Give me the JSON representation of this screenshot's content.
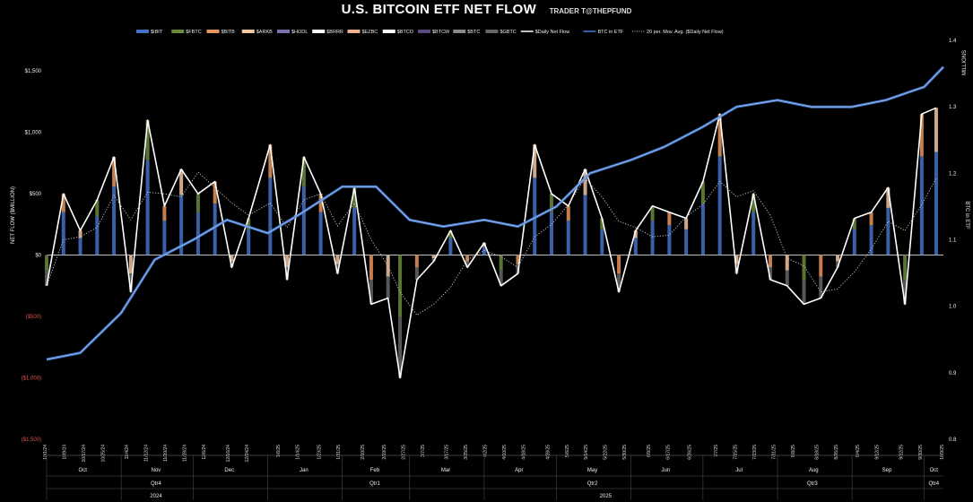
{
  "header": {
    "title": "U.S. BITCOIN ETF NET FLOW",
    "subtitle": "TRADER T@THEPFUND"
  },
  "chart_data": {
    "type": "bar",
    "title": "U.S. BITCOIN ETF NET FLOW",
    "subtitle": "TRADER T@THEPFUND",
    "ylabel_left": "NET FLOW ($MILLION)",
    "ylabel_right": "BTC in ETF",
    "ylabel_right_units": "MILLIONS",
    "left_axis": {
      "ylim": [
        -1500,
        1750
      ],
      "ticks": [
        {
          "value": 1500,
          "label": "$1,500"
        },
        {
          "value": 1000,
          "label": "$1,000"
        },
        {
          "value": 500,
          "label": "$500"
        },
        {
          "value": 0,
          "label": "$0"
        },
        {
          "value": -500,
          "label": "($500)"
        },
        {
          "value": -1000,
          "label": "($1,000)"
        },
        {
          "value": -1500,
          "label": "($1,500)"
        }
      ]
    },
    "right_axis": {
      "ylim": [
        0.8,
        1.4
      ],
      "ticks": [
        {
          "value": 1.4,
          "label": "1.4"
        },
        {
          "value": 1.3,
          "label": "1.3"
        },
        {
          "value": 1.2,
          "label": "1.2"
        },
        {
          "value": 1.1,
          "label": "1.1"
        },
        {
          "value": 1.0,
          "label": "1.0"
        },
        {
          "value": 0.9,
          "label": "0.9"
        },
        {
          "value": 0.8,
          "label": "0.8"
        }
      ]
    },
    "legend": {
      "placement": "top",
      "items": [
        {
          "name": "$IBIT",
          "color": "#4472c4",
          "kind": "bar"
        },
        {
          "name": "$FBTC",
          "color": "#6a8a3a",
          "kind": "bar"
        },
        {
          "name": "$BITB",
          "color": "#e8955a",
          "kind": "bar"
        },
        {
          "name": "$ARKB",
          "color": "#f2c6a0",
          "kind": "bar"
        },
        {
          "name": "$HODL",
          "color": "#7b6fb0",
          "kind": "bar"
        },
        {
          "name": "$BRRR",
          "color": "#ffffff",
          "kind": "bar"
        },
        {
          "name": "$EZBC",
          "color": "#f0b090",
          "kind": "bar"
        },
        {
          "name": "$BTCO",
          "color": "#ffffff",
          "kind": "bar"
        },
        {
          "name": "$BTCW",
          "color": "#5a4a80",
          "kind": "bar"
        },
        {
          "name": "$BTC",
          "color": "#888888",
          "kind": "bar"
        },
        {
          "name": "$GBTC",
          "color": "#666666",
          "kind": "bar"
        },
        {
          "name": "$Daily Net Flow",
          "color": "#ffffff",
          "kind": "line"
        },
        {
          "name": "BTC in ETF",
          "color": "#4a7fd0",
          "kind": "line"
        },
        {
          "name": "20 per. Mov. Avg. ($Daily Net Flow)",
          "color": "#cccccc",
          "kind": "dotted"
        }
      ]
    },
    "months": [
      {
        "label": "Oct",
        "quarter": "Qtr4",
        "start": "2024-10-01",
        "end": "2024-10-31"
      },
      {
        "label": "Nov",
        "quarter": "Qtr4",
        "start": "2024-11-01",
        "end": "2024-11-30"
      },
      {
        "label": "Dec",
        "quarter": "Qtr4",
        "start": "2024-12-01",
        "end": "2024-12-31"
      },
      {
        "label": "Jan",
        "quarter": "Qtr1",
        "start": "2025-01-01",
        "end": "2025-01-31"
      },
      {
        "label": "Feb",
        "quarter": "Qtr1",
        "start": "2025-02-01",
        "end": "2025-02-28"
      },
      {
        "label": "Mar",
        "quarter": "Qtr1",
        "start": "2025-03-01",
        "end": "2025-03-31"
      },
      {
        "label": "Apr",
        "quarter": "Qtr2",
        "start": "2025-04-01",
        "end": "2025-04-30"
      },
      {
        "label": "May",
        "quarter": "Qtr2",
        "start": "2025-05-01",
        "end": "2025-05-31"
      },
      {
        "label": "Jun",
        "quarter": "Qtr2",
        "start": "2025-06-01",
        "end": "2025-06-30"
      },
      {
        "label": "Jul",
        "quarter": "Qtr3",
        "start": "2025-07-01",
        "end": "2025-07-31"
      },
      {
        "label": "Aug",
        "quarter": "Qtr3",
        "start": "2025-08-01",
        "end": "2025-08-31"
      },
      {
        "label": "Sep",
        "quarter": "Qtr3",
        "start": "2025-09-01",
        "end": "2025-09-30"
      },
      {
        "label": "Oct",
        "quarter": "Qtr4",
        "start": "2025-10-01",
        "end": "2025-10-09"
      }
    ],
    "quarters": [
      {
        "label": "Qtr4",
        "start": "2024-10-01",
        "end": "2024-12-31"
      },
      {
        "label": "Qtr1",
        "start": "2025-01-01",
        "end": "2025-03-31"
      },
      {
        "label": "Qtr2",
        "start": "2025-04-01",
        "end": "2025-06-30"
      },
      {
        "label": "Qtr3",
        "start": "2025-07-01",
        "end": "2025-09-30"
      },
      {
        "label": "Qtr4",
        "start": "2025-10-01",
        "end": "2025-10-09"
      }
    ],
    "years": [
      {
        "label": "2024",
        "start": "2024-10-01",
        "end": "2024-12-31"
      },
      {
        "label": "2025",
        "start": "2025-01-01",
        "end": "2025-10-09"
      }
    ],
    "x_tick_labels": [
      "10/1/24",
      "10/9/24",
      "10/17/24",
      "10/25/24",
      "11/4/24",
      "11/12/24",
      "11/20/24",
      "11/28/24",
      "12/6/24",
      "12/16/24",
      "12/24/24",
      "1/6/25",
      "1/14/25",
      "1/23/25",
      "1/31/25",
      "2/10/25",
      "2/19/25",
      "2/27/25",
      "3/7/25",
      "3/17/25",
      "3/25/25",
      "4/2/25",
      "4/10/25",
      "4/18/25",
      "4/28/25",
      "5/6/25",
      "5/14/25",
      "5/22/25",
      "5/30/25",
      "6/9/25",
      "6/17/25",
      "6/26/25",
      "7/7/25",
      "7/15/25",
      "7/23/25",
      "7/31/25",
      "8/8/25",
      "8/18/25",
      "8/26/25",
      "9/4/25",
      "9/12/25",
      "9/22/25",
      "9/30/25",
      "10/9/25"
    ],
    "daily_net_flow": {
      "x": [
        "2024-10-01",
        "2024-10-08",
        "2024-10-15",
        "2024-10-22",
        "2024-10-29",
        "2024-11-05",
        "2024-11-12",
        "2024-11-19",
        "2024-11-26",
        "2024-12-03",
        "2024-12-10",
        "2024-12-17",
        "2024-12-24",
        "2025-01-02",
        "2025-01-09",
        "2025-01-16",
        "2025-01-23",
        "2025-01-30",
        "2025-02-06",
        "2025-02-13",
        "2025-02-20",
        "2025-02-25",
        "2025-03-04",
        "2025-03-11",
        "2025-03-18",
        "2025-03-25",
        "2025-04-01",
        "2025-04-08",
        "2025-04-15",
        "2025-04-22",
        "2025-04-29",
        "2025-05-06",
        "2025-05-13",
        "2025-05-20",
        "2025-05-27",
        "2025-06-03",
        "2025-06-10",
        "2025-06-17",
        "2025-06-24",
        "2025-07-01",
        "2025-07-08",
        "2025-07-15",
        "2025-07-22",
        "2025-07-29",
        "2025-08-05",
        "2025-08-12",
        "2025-08-19",
        "2025-08-26",
        "2025-09-02",
        "2025-09-09",
        "2025-09-16",
        "2025-09-23",
        "2025-09-30",
        "2025-10-06"
      ],
      "values": [
        -250,
        500,
        200,
        450,
        800,
        -300,
        1100,
        400,
        700,
        500,
        600,
        -100,
        300,
        900,
        -200,
        800,
        500,
        -150,
        550,
        -400,
        -350,
        -1000,
        -200,
        -50,
        200,
        -100,
        100,
        -250,
        -150,
        900,
        500,
        400,
        700,
        300,
        -300,
        200,
        400,
        350,
        300,
        600,
        1150,
        -150,
        500,
        -200,
        -250,
        -400,
        -350,
        -100,
        300,
        350,
        550,
        -400,
        1150,
        1200
      ],
      "units": "$ million"
    },
    "btc_in_etf": {
      "x": [
        "2024-10-01",
        "2024-10-15",
        "2024-11-01",
        "2024-11-15",
        "2024-12-01",
        "2024-12-15",
        "2025-01-01",
        "2025-01-15",
        "2025-02-01",
        "2025-02-15",
        "2025-03-01",
        "2025-03-15",
        "2025-04-01",
        "2025-04-15",
        "2025-05-01",
        "2025-05-15",
        "2025-06-01",
        "2025-06-15",
        "2025-07-01",
        "2025-07-15",
        "2025-08-01",
        "2025-08-15",
        "2025-09-01",
        "2025-09-15",
        "2025-10-01",
        "2025-10-09"
      ],
      "values": [
        0.92,
        0.93,
        0.99,
        1.07,
        1.1,
        1.13,
        1.11,
        1.14,
        1.18,
        1.18,
        1.13,
        1.12,
        1.13,
        1.12,
        1.15,
        1.2,
        1.22,
        1.24,
        1.27,
        1.3,
        1.31,
        1.3,
        1.3,
        1.31,
        1.33,
        1.36
      ],
      "units": "million BTC"
    }
  }
}
